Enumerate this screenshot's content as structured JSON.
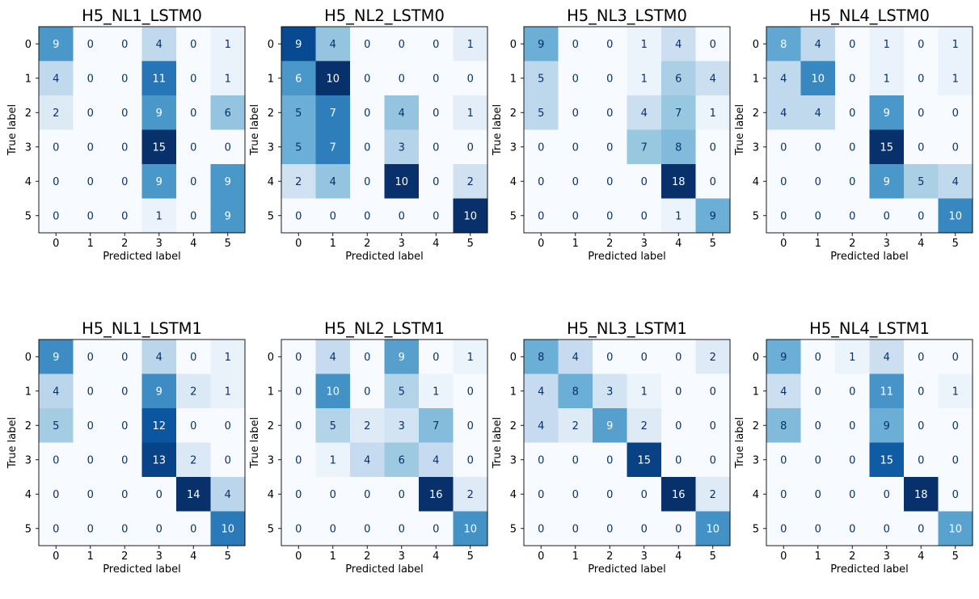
{
  "colormap": "Blues",
  "colors": {
    "low": "#f7fbff",
    "high": "#08306b",
    "light_text": "#ffffff",
    "dark_text": "#08306b",
    "axis": "#000000"
  },
  "chart_data": [
    {
      "type": "heatmap",
      "title": "H5_NL1_LSTM0",
      "xlabel": "Predicted label",
      "ylabel": "True label",
      "x_ticks": [
        "0",
        "1",
        "2",
        "3",
        "4",
        "5"
      ],
      "y_ticks": [
        "0",
        "1",
        "2",
        "3",
        "4",
        "5"
      ],
      "matrix": [
        [
          9,
          0,
          0,
          4,
          0,
          1
        ],
        [
          4,
          0,
          0,
          11,
          0,
          1
        ],
        [
          2,
          0,
          0,
          9,
          0,
          6
        ],
        [
          0,
          0,
          0,
          15,
          0,
          0
        ],
        [
          0,
          0,
          0,
          9,
          0,
          9
        ],
        [
          0,
          0,
          0,
          1,
          0,
          9
        ]
      ]
    },
    {
      "type": "heatmap",
      "title": "H5_NL2_LSTM0",
      "xlabel": "Predicted label",
      "ylabel": "True label",
      "x_ticks": [
        "0",
        "1",
        "2",
        "3",
        "4",
        "5"
      ],
      "y_ticks": [
        "0",
        "1",
        "2",
        "3",
        "4",
        "5"
      ],
      "matrix": [
        [
          9,
          4,
          0,
          0,
          0,
          1
        ],
        [
          6,
          10,
          0,
          0,
          0,
          0
        ],
        [
          5,
          7,
          0,
          4,
          0,
          1
        ],
        [
          5,
          7,
          0,
          3,
          0,
          0
        ],
        [
          2,
          4,
          0,
          10,
          0,
          2
        ],
        [
          0,
          0,
          0,
          0,
          0,
          10
        ]
      ]
    },
    {
      "type": "heatmap",
      "title": "H5_NL3_LSTM0",
      "xlabel": "Predicted label",
      "ylabel": "True label",
      "x_ticks": [
        "0",
        "1",
        "2",
        "3",
        "4",
        "5"
      ],
      "y_ticks": [
        "0",
        "1",
        "2",
        "3",
        "4",
        "5"
      ],
      "matrix": [
        [
          9,
          0,
          0,
          1,
          4,
          0
        ],
        [
          5,
          0,
          0,
          1,
          6,
          4
        ],
        [
          5,
          0,
          0,
          4,
          7,
          1
        ],
        [
          0,
          0,
          0,
          7,
          8,
          0
        ],
        [
          0,
          0,
          0,
          0,
          18,
          0
        ],
        [
          0,
          0,
          0,
          0,
          1,
          9
        ]
      ]
    },
    {
      "type": "heatmap",
      "title": "H5_NL4_LSTM0",
      "xlabel": "Predicted label",
      "ylabel": "True label",
      "x_ticks": [
        "0",
        "1",
        "2",
        "3",
        "4",
        "5"
      ],
      "y_ticks": [
        "0",
        "1",
        "2",
        "3",
        "4",
        "5"
      ],
      "matrix": [
        [
          8,
          4,
          0,
          1,
          0,
          1
        ],
        [
          4,
          10,
          0,
          1,
          0,
          1
        ],
        [
          4,
          4,
          0,
          9,
          0,
          0
        ],
        [
          0,
          0,
          0,
          15,
          0,
          0
        ],
        [
          0,
          0,
          0,
          9,
          5,
          4
        ],
        [
          0,
          0,
          0,
          0,
          0,
          10
        ]
      ]
    },
    {
      "type": "heatmap",
      "title": "H5_NL1_LSTM1",
      "xlabel": "Predicted label",
      "ylabel": "True label",
      "x_ticks": [
        "0",
        "1",
        "2",
        "3",
        "4",
        "5"
      ],
      "y_ticks": [
        "0",
        "1",
        "2",
        "3",
        "4",
        "5"
      ],
      "matrix": [
        [
          9,
          0,
          0,
          4,
          0,
          1
        ],
        [
          4,
          0,
          0,
          9,
          2,
          1
        ],
        [
          5,
          0,
          0,
          12,
          0,
          0
        ],
        [
          0,
          0,
          0,
          13,
          2,
          0
        ],
        [
          0,
          0,
          0,
          0,
          14,
          4
        ],
        [
          0,
          0,
          0,
          0,
          0,
          10
        ]
      ]
    },
    {
      "type": "heatmap",
      "title": "H5_NL2_LSTM1",
      "xlabel": "Predicted label",
      "ylabel": "True label",
      "x_ticks": [
        "0",
        "1",
        "2",
        "3",
        "4",
        "5"
      ],
      "y_ticks": [
        "0",
        "1",
        "2",
        "3",
        "4",
        "5"
      ],
      "matrix": [
        [
          0,
          4,
          0,
          9,
          0,
          1
        ],
        [
          0,
          10,
          0,
          5,
          1,
          0
        ],
        [
          0,
          5,
          2,
          3,
          7,
          0
        ],
        [
          0,
          1,
          4,
          6,
          4,
          0
        ],
        [
          0,
          0,
          0,
          0,
          16,
          2
        ],
        [
          0,
          0,
          0,
          0,
          0,
          10
        ]
      ]
    },
    {
      "type": "heatmap",
      "title": "H5_NL3_LSTM1",
      "xlabel": "Predicted label",
      "ylabel": "True label",
      "x_ticks": [
        "0",
        "1",
        "2",
        "3",
        "4",
        "5"
      ],
      "y_ticks": [
        "0",
        "1",
        "2",
        "3",
        "4",
        "5"
      ],
      "matrix": [
        [
          8,
          4,
          0,
          0,
          0,
          2
        ],
        [
          4,
          8,
          3,
          1,
          0,
          0
        ],
        [
          4,
          2,
          9,
          2,
          0,
          0
        ],
        [
          0,
          0,
          0,
          15,
          0,
          0
        ],
        [
          0,
          0,
          0,
          0,
          16,
          2
        ],
        [
          0,
          0,
          0,
          0,
          0,
          10
        ]
      ]
    },
    {
      "type": "heatmap",
      "title": "H5_NL4_LSTM1",
      "xlabel": "Predicted label",
      "ylabel": "True label",
      "x_ticks": [
        "0",
        "1",
        "2",
        "3",
        "4",
        "5"
      ],
      "y_ticks": [
        "0",
        "1",
        "2",
        "3",
        "4",
        "5"
      ],
      "matrix": [
        [
          9,
          0,
          1,
          4,
          0,
          0
        ],
        [
          4,
          0,
          0,
          11,
          0,
          1
        ],
        [
          8,
          0,
          0,
          9,
          0,
          0
        ],
        [
          0,
          0,
          0,
          15,
          0,
          0
        ],
        [
          0,
          0,
          0,
          0,
          18,
          0
        ],
        [
          0,
          0,
          0,
          0,
          0,
          10
        ]
      ]
    }
  ]
}
